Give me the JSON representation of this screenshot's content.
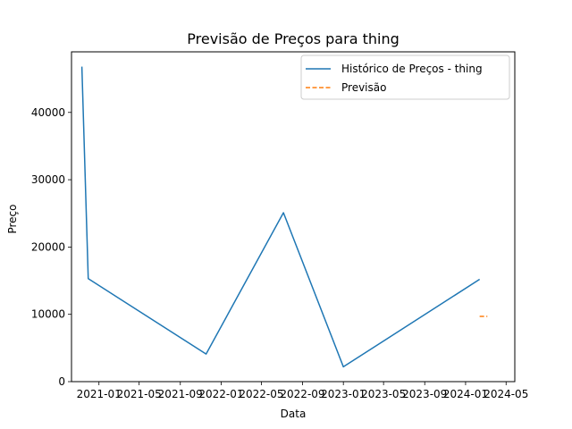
{
  "chart_data": {
    "type": "line",
    "title": "Previsão de Preços para thing",
    "xlabel": "Data",
    "ylabel": "Preço",
    "x_is_date": true,
    "xlim": [
      "2020-10-11",
      "2024-05-27"
    ],
    "ylim": [
      0,
      49000
    ],
    "yticks": [
      0,
      10000,
      20000,
      30000,
      40000
    ],
    "xticks": [
      {
        "date": "2021-01-01",
        "label": "2021-01"
      },
      {
        "date": "2021-05-01",
        "label": "2021-05"
      },
      {
        "date": "2021-09-01",
        "label": "2021-09"
      },
      {
        "date": "2022-01-01",
        "label": "2022-01"
      },
      {
        "date": "2022-05-01",
        "label": "2022-05"
      },
      {
        "date": "2022-09-01",
        "label": "2022-09"
      },
      {
        "date": "2023-01-01",
        "label": "2023-01"
      },
      {
        "date": "2023-05-01",
        "label": "2023-05"
      },
      {
        "date": "2023-09-01",
        "label": "2023-09"
      },
      {
        "date": "2024-01-01",
        "label": "2024-01"
      },
      {
        "date": "2024-05-01",
        "label": "2024-05"
      }
    ],
    "grid": false,
    "legend_position": "top-right",
    "series": [
      {
        "name": "Histórico de Preços - thing",
        "color": "#1f77b4",
        "style": "solid",
        "points": [
          {
            "x": "2020-11-11",
            "y": 46800
          },
          {
            "x": "2020-11-30",
            "y": 15300
          },
          {
            "x": "2021-11-17",
            "y": 4100
          },
          {
            "x": "2022-07-06",
            "y": 25100
          },
          {
            "x": "2023-01-01",
            "y": 2200
          },
          {
            "x": "2024-02-12",
            "y": 15200
          }
        ]
      },
      {
        "name": "Previsão",
        "color": "#ff7f0e",
        "style": "dashed",
        "points": [
          {
            "x": "2024-02-12",
            "y": 9700
          },
          {
            "x": "2024-03-06",
            "y": 9700
          }
        ]
      }
    ]
  }
}
